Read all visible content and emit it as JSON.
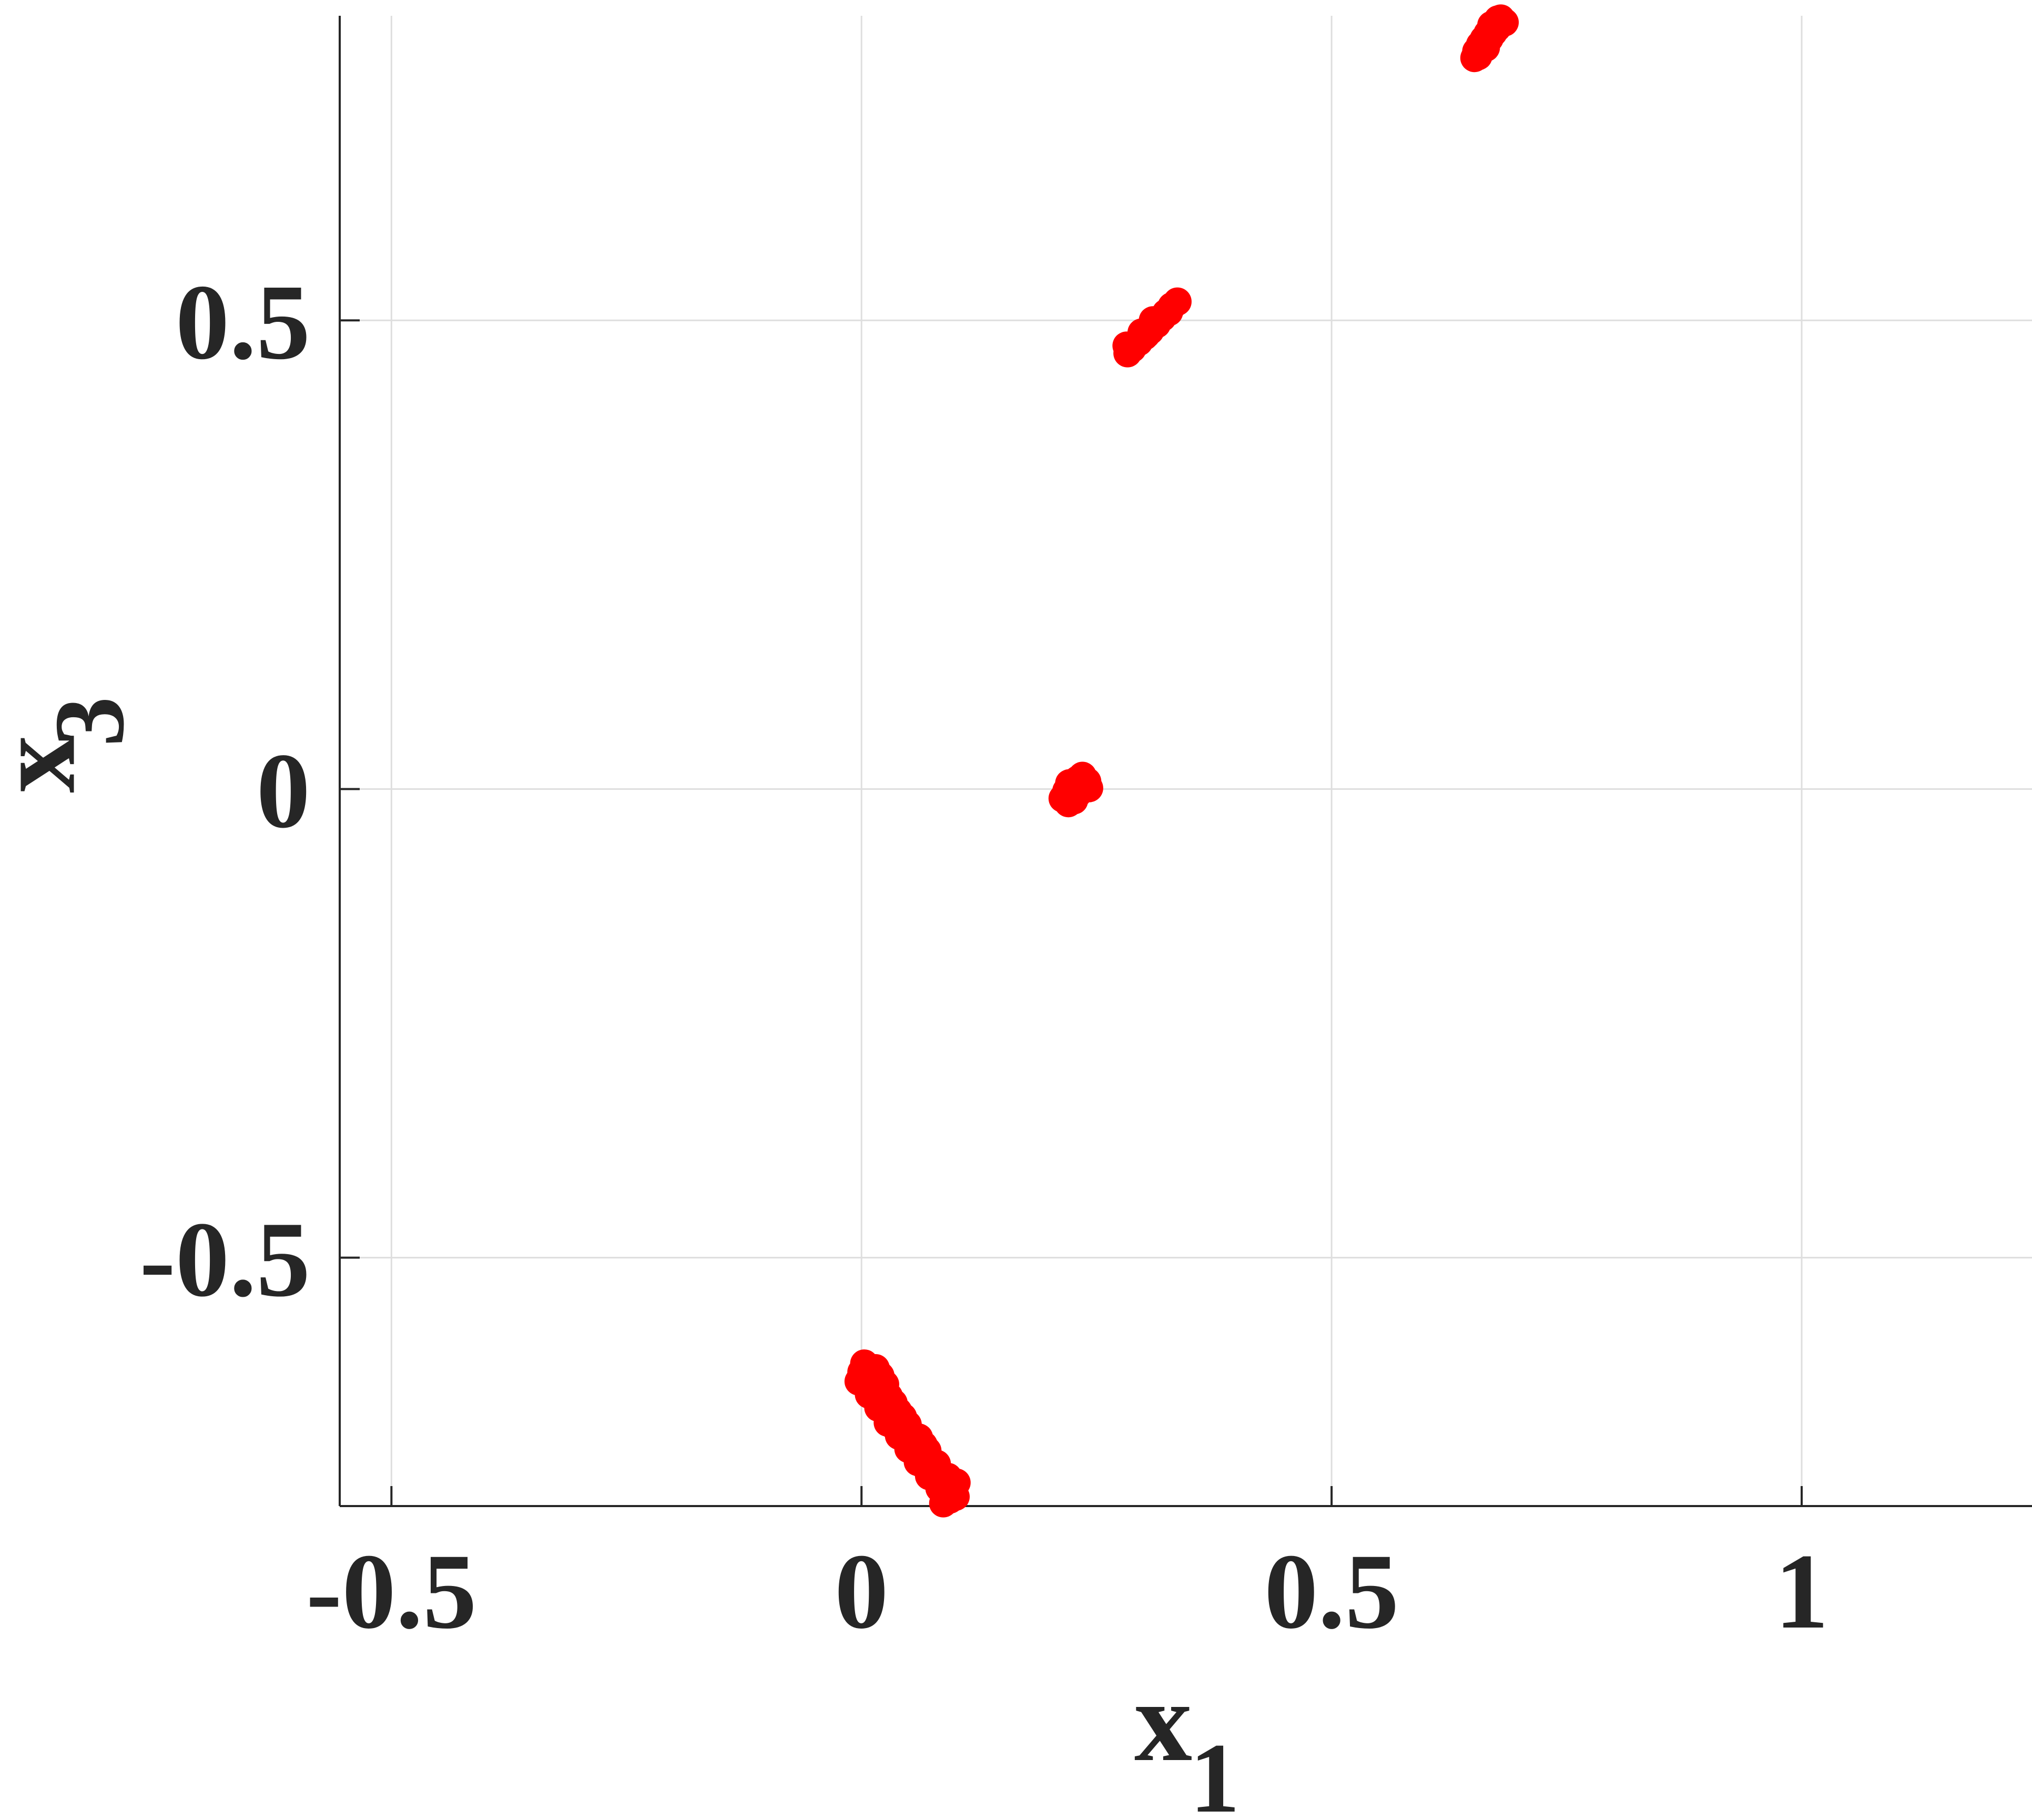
{
  "chart_data": {
    "type": "scatter",
    "title": "",
    "xlabel": {
      "base": "x",
      "subscript": "1"
    },
    "ylabel": {
      "base": "x",
      "subscript": "3"
    },
    "xlim": [
      -0.555,
      1.245
    ],
    "ylim": [
      -0.765,
      0.825
    ],
    "x_ticks": [
      -0.5,
      0,
      0.5,
      1
    ],
    "y_ticks": [
      -0.5,
      0,
      0.5
    ],
    "x_tick_labels": [
      "-0.5",
      "0",
      "0.5",
      "1"
    ],
    "y_tick_labels": [
      "-0.5",
      "0",
      "0.5"
    ],
    "grid": true,
    "marker_color": "#ff0000",
    "series": [
      {
        "color": "#ff0000",
        "points": [
          [
            0.67,
            0.815
          ],
          [
            0.677,
            0.821
          ],
          [
            0.684,
            0.818
          ],
          [
            0.666,
            0.806
          ],
          [
            0.673,
            0.811
          ],
          [
            0.68,
            0.816
          ],
          [
            0.662,
            0.8
          ],
          [
            0.669,
            0.806
          ],
          [
            0.676,
            0.812
          ],
          [
            0.658,
            0.794
          ],
          [
            0.665,
            0.8
          ],
          [
            0.672,
            0.807
          ],
          [
            0.654,
            0.787
          ],
          [
            0.661,
            0.794
          ],
          [
            0.668,
            0.801
          ],
          [
            0.652,
            0.78
          ],
          [
            0.658,
            0.786
          ],
          [
            0.664,
            0.791
          ],
          [
            0.656,
            0.782
          ],
          [
            0.68,
            0.822
          ],
          [
            0.336,
            0.52
          ],
          [
            0.33,
            0.515
          ],
          [
            0.324,
            0.508
          ],
          [
            0.318,
            0.502
          ],
          [
            0.313,
            0.497
          ],
          [
            0.308,
            0.491
          ],
          [
            0.303,
            0.485
          ],
          [
            0.297,
            0.48
          ],
          [
            0.292,
            0.475
          ],
          [
            0.288,
            0.47
          ],
          [
            0.283,
            0.465
          ],
          [
            0.327,
            0.509
          ],
          [
            0.32,
            0.503
          ],
          [
            0.314,
            0.496
          ],
          [
            0.307,
            0.489
          ],
          [
            0.301,
            0.483
          ],
          [
            0.295,
            0.477
          ],
          [
            0.31,
            0.5
          ],
          [
            0.298,
            0.487
          ],
          [
            0.282,
            0.473
          ],
          [
            0.23,
            0.01
          ],
          [
            0.235,
            0.014
          ],
          [
            0.24,
            0.008
          ],
          [
            0.225,
            0.003
          ],
          [
            0.232,
            0.0
          ],
          [
            0.238,
            0.002
          ],
          [
            0.218,
            -0.002
          ],
          [
            0.224,
            -0.008
          ],
          [
            0.23,
            -0.005
          ],
          [
            0.214,
            -0.01
          ],
          [
            0.22,
            -0.015
          ],
          [
            0.226,
            -0.012
          ],
          [
            0.236,
            0.005
          ],
          [
            0.221,
            0.006
          ],
          [
            0.242,
            0.001
          ],
          [
            0.003,
            -0.613
          ],
          [
            0.008,
            -0.617
          ],
          [
            0.015,
            -0.618
          ],
          [
            0.0,
            -0.622
          ],
          [
            0.006,
            -0.625
          ],
          [
            0.013,
            -0.628
          ],
          [
            0.02,
            -0.626
          ],
          [
            -0.003,
            -0.632
          ],
          [
            0.004,
            -0.636
          ],
          [
            0.011,
            -0.64
          ],
          [
            0.018,
            -0.638
          ],
          [
            0.025,
            -0.635
          ],
          [
            0.008,
            -0.646
          ],
          [
            0.015,
            -0.65
          ],
          [
            0.022,
            -0.652
          ],
          [
            0.029,
            -0.648
          ],
          [
            0.034,
            -0.655
          ],
          [
            0.018,
            -0.66
          ],
          [
            0.025,
            -0.665
          ],
          [
            0.032,
            -0.668
          ],
          [
            0.039,
            -0.664
          ],
          [
            0.028,
            -0.676
          ],
          [
            0.035,
            -0.68
          ],
          [
            0.042,
            -0.682
          ],
          [
            0.049,
            -0.678
          ],
          [
            0.04,
            -0.69
          ],
          [
            0.047,
            -0.694
          ],
          [
            0.054,
            -0.697
          ],
          [
            0.061,
            -0.692
          ],
          [
            0.05,
            -0.704
          ],
          [
            0.057,
            -0.708
          ],
          [
            0.064,
            -0.711
          ],
          [
            0.07,
            -0.706
          ],
          [
            0.06,
            -0.718
          ],
          [
            0.067,
            -0.722
          ],
          [
            0.074,
            -0.725
          ],
          [
            0.08,
            -0.72
          ],
          [
            0.072,
            -0.733
          ],
          [
            0.079,
            -0.737
          ],
          [
            0.086,
            -0.739
          ],
          [
            0.092,
            -0.734
          ],
          [
            0.083,
            -0.746
          ],
          [
            0.09,
            -0.75
          ],
          [
            0.097,
            -0.747
          ],
          [
            0.094,
            -0.758
          ],
          [
            0.1,
            -0.755
          ],
          [
            0.087,
            -0.762
          ],
          [
            0.101,
            -0.74
          ],
          [
            0.044,
            -0.67
          ],
          [
            0.066,
            -0.7
          ]
        ]
      }
    ]
  }
}
